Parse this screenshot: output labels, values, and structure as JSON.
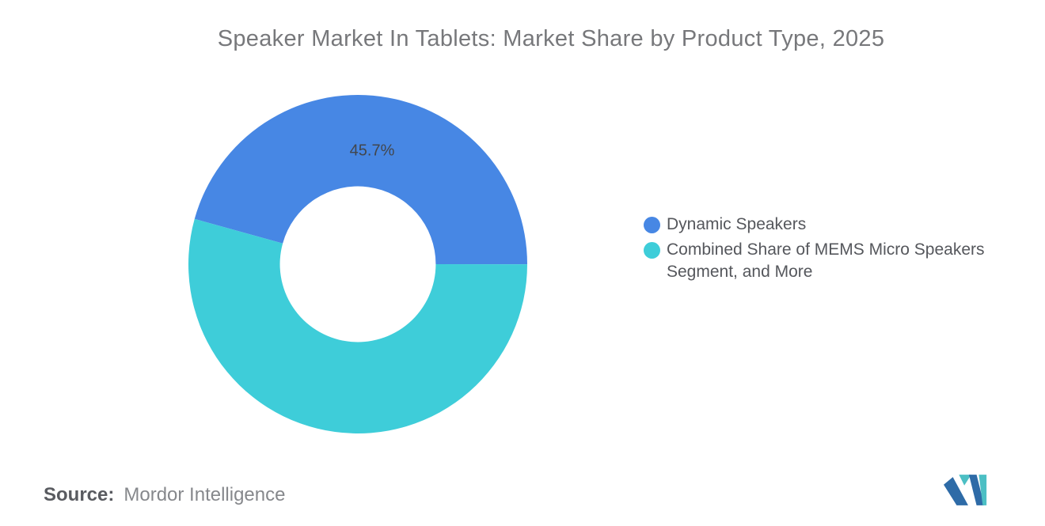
{
  "chart_data": {
    "type": "pie",
    "subtype": "donut",
    "title": "Speaker Market In Tablets: Market Share by Product Type, 2025",
    "slices": [
      {
        "id": "dynamic-speakers",
        "label": "Dynamic Speakers",
        "value": 45.7,
        "display_label": "45.7%",
        "color": "#4787E4"
      },
      {
        "id": "mems-micro-speakers-and-more",
        "label": "Combined Share of MEMS Micro Speakers Segment, and More",
        "value": 54.3,
        "color": "#3ECDD9"
      }
    ],
    "start_angle_deg": -74.5,
    "inner_radius_ratio": 0.46,
    "legend_position": "right",
    "data_label_color": "#42464C"
  },
  "source": {
    "label": "Source:",
    "value": "Mordor Intelligence"
  },
  "brand": {
    "logo_name": "mordor-intelligence-logo",
    "logo_blue": "#2E6BA7",
    "logo_teal": "#4CBFC4"
  }
}
